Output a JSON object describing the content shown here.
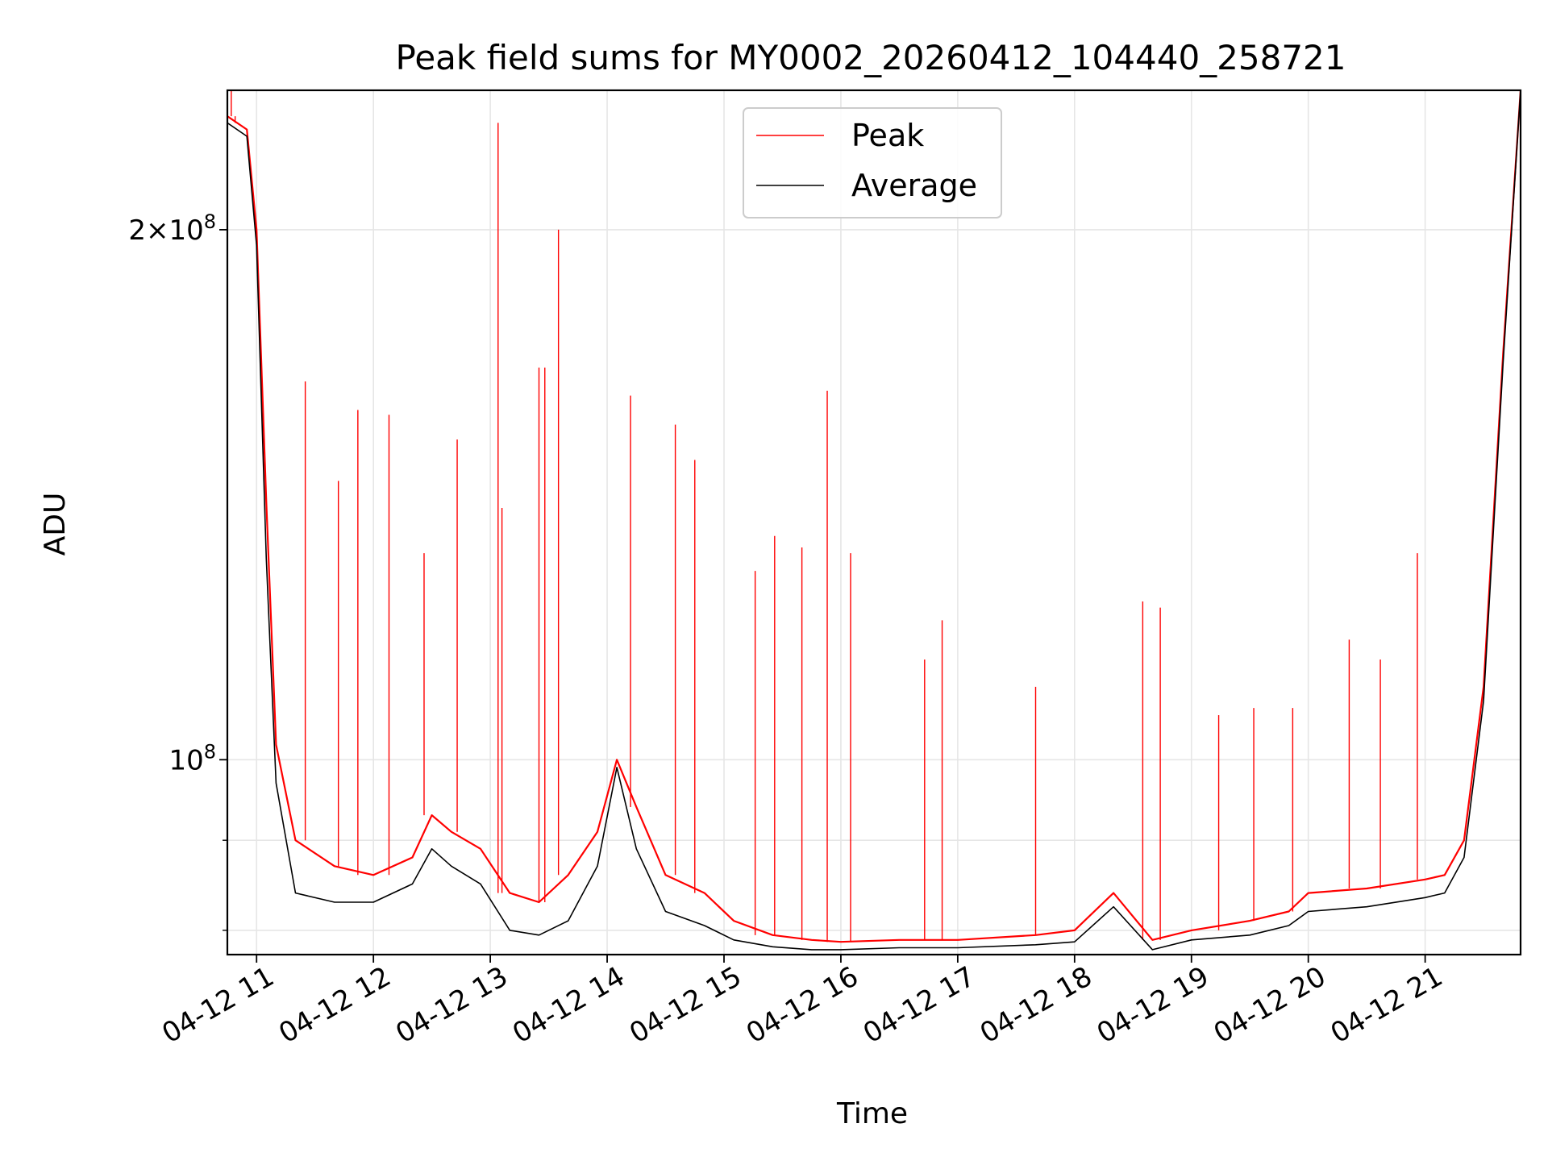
{
  "chart_data": {
    "type": "line",
    "title": "Peak field sums for MY0002_20260412_104440_258721",
    "xlabel": "Time",
    "ylabel": "ADU",
    "y_scale": "log",
    "ylim": [
      77500000,
      240000000
    ],
    "xlim": [
      "2026-04-12 10:45",
      "2026-04-12 21:49"
    ],
    "x_ticks": [
      "04-12 11",
      "04-12 12",
      "04-12 13",
      "04-12 14",
      "04-12 15",
      "04-12 16",
      "04-12 17",
      "04-12 18",
      "04-12 19",
      "04-12 20",
      "04-12 21"
    ],
    "x_tick_times": [
      "2026-04-12 11:00",
      "2026-04-12 12:00",
      "2026-04-12 13:00",
      "2026-04-12 14:00",
      "2026-04-12 15:00",
      "2026-04-12 16:00",
      "2026-04-12 17:00",
      "2026-04-12 18:00",
      "2026-04-12 19:00",
      "2026-04-12 20:00",
      "2026-04-12 21:00"
    ],
    "y_ticks_major": [
      {
        "value": 100000000,
        "base": "10",
        "exp": "8",
        "coef": ""
      },
      {
        "value": 200000000,
        "base": "10",
        "exp": "8",
        "coef": "2"
      }
    ],
    "y_ticks_minor": [
      80000000,
      90000000
    ],
    "grid": true,
    "legend_position": "top-center",
    "series": [
      {
        "name": "Peak",
        "color": "#ff0000",
        "x": [
          "2026-04-12 10:45",
          "2026-04-12 10:55",
          "2026-04-12 11:00",
          "2026-04-12 11:05",
          "2026-04-12 11:10",
          "2026-04-12 11:20",
          "2026-04-12 11:40",
          "2026-04-12 12:00",
          "2026-04-12 12:20",
          "2026-04-12 12:30",
          "2026-04-12 12:40",
          "2026-04-12 12:55",
          "2026-04-12 13:10",
          "2026-04-12 13:25",
          "2026-04-12 13:40",
          "2026-04-12 13:55",
          "2026-04-12 14:05",
          "2026-04-12 14:15",
          "2026-04-12 14:30",
          "2026-04-12 14:50",
          "2026-04-12 15:05",
          "2026-04-12 15:25",
          "2026-04-12 15:45",
          "2026-04-12 16:00",
          "2026-04-12 16:30",
          "2026-04-12 17:00",
          "2026-04-12 17:40",
          "2026-04-12 18:00",
          "2026-04-12 18:20",
          "2026-04-12 18:40",
          "2026-04-12 19:00",
          "2026-04-12 19:30",
          "2026-04-12 19:50",
          "2026-04-12 20:00",
          "2026-04-12 20:30",
          "2026-04-12 21:00",
          "2026-04-12 21:10",
          "2026-04-12 21:20",
          "2026-04-12 21:30",
          "2026-04-12 21:40",
          "2026-04-12 21:49"
        ],
        "y": [
          232000000,
          228000000,
          200000000,
          140000000,
          102000000,
          90000000,
          87000000,
          86000000,
          88000000,
          93000000,
          91000000,
          89000000,
          84000000,
          83000000,
          86000000,
          91000000,
          100000000,
          94000000,
          86000000,
          84000000,
          81000000,
          79500000,
          79000000,
          78800000,
          79000000,
          79000000,
          79500000,
          80000000,
          84000000,
          79000000,
          80000000,
          81000000,
          82000000,
          84000000,
          84500000,
          85500000,
          86000000,
          90000000,
          110000000,
          170000000,
          240000000
        ],
        "spikes": [
          {
            "x": "2026-04-12 10:47",
            "y": 240000000
          },
          {
            "x": "2026-04-12 10:49",
            "y": 230000000
          },
          {
            "x": "2026-04-12 11:25",
            "y": 164000000
          },
          {
            "x": "2026-04-12 11:42",
            "y": 144000000
          },
          {
            "x": "2026-04-12 11:52",
            "y": 158000000
          },
          {
            "x": "2026-04-12 12:08",
            "y": 157000000
          },
          {
            "x": "2026-04-12 12:26",
            "y": 131000000
          },
          {
            "x": "2026-04-12 12:43",
            "y": 152000000
          },
          {
            "x": "2026-04-12 13:04",
            "y": 230000000
          },
          {
            "x": "2026-04-12 13:06",
            "y": 139000000
          },
          {
            "x": "2026-04-12 13:25",
            "y": 167000000
          },
          {
            "x": "2026-04-12 13:28",
            "y": 167000000
          },
          {
            "x": "2026-04-12 13:35",
            "y": 200000000
          },
          {
            "x": "2026-04-12 14:12",
            "y": 161000000
          },
          {
            "x": "2026-04-12 14:35",
            "y": 155000000
          },
          {
            "x": "2026-04-12 14:45",
            "y": 148000000
          },
          {
            "x": "2026-04-12 15:16",
            "y": 128000000
          },
          {
            "x": "2026-04-12 15:26",
            "y": 134000000
          },
          {
            "x": "2026-04-12 15:40",
            "y": 132000000
          },
          {
            "x": "2026-04-12 15:53",
            "y": 162000000
          },
          {
            "x": "2026-04-12 16:05",
            "y": 131000000
          },
          {
            "x": "2026-04-12 16:43",
            "y": 114000000
          },
          {
            "x": "2026-04-12 16:52",
            "y": 120000000
          },
          {
            "x": "2026-04-12 17:40",
            "y": 110000000
          },
          {
            "x": "2026-04-12 18:35",
            "y": 123000000
          },
          {
            "x": "2026-04-12 18:44",
            "y": 122000000
          },
          {
            "x": "2026-04-12 19:14",
            "y": 106000000
          },
          {
            "x": "2026-04-12 19:32",
            "y": 107000000
          },
          {
            "x": "2026-04-12 19:52",
            "y": 107000000
          },
          {
            "x": "2026-04-12 20:21",
            "y": 117000000
          },
          {
            "x": "2026-04-12 20:37",
            "y": 114000000
          },
          {
            "x": "2026-04-12 20:56",
            "y": 131000000
          }
        ]
      },
      {
        "name": "Average",
        "color": "#000000",
        "x": [
          "2026-04-12 10:45",
          "2026-04-12 10:55",
          "2026-04-12 11:00",
          "2026-04-12 11:05",
          "2026-04-12 11:10",
          "2026-04-12 11:20",
          "2026-04-12 11:40",
          "2026-04-12 12:00",
          "2026-04-12 12:20",
          "2026-04-12 12:30",
          "2026-04-12 12:40",
          "2026-04-12 12:55",
          "2026-04-12 13:10",
          "2026-04-12 13:25",
          "2026-04-12 13:40",
          "2026-04-12 13:55",
          "2026-04-12 14:05",
          "2026-04-12 14:15",
          "2026-04-12 14:30",
          "2026-04-12 14:50",
          "2026-04-12 15:05",
          "2026-04-12 15:25",
          "2026-04-12 15:45",
          "2026-04-12 16:00",
          "2026-04-12 16:30",
          "2026-04-12 17:00",
          "2026-04-12 17:40",
          "2026-04-12 18:00",
          "2026-04-12 18:20",
          "2026-04-12 18:40",
          "2026-04-12 19:00",
          "2026-04-12 19:30",
          "2026-04-12 19:50",
          "2026-04-12 20:00",
          "2026-04-12 20:30",
          "2026-04-12 21:00",
          "2026-04-12 21:10",
          "2026-04-12 21:20",
          "2026-04-12 21:30",
          "2026-04-12 21:40",
          "2026-04-12 21:49"
        ],
        "y": [
          230000000,
          226000000,
          196000000,
          130000000,
          97000000,
          84000000,
          83000000,
          83000000,
          85000000,
          89000000,
          87000000,
          85000000,
          80000000,
          79500000,
          81000000,
          87000000,
          99000000,
          89000000,
          82000000,
          80500000,
          79000000,
          78300000,
          78000000,
          78000000,
          78200000,
          78200000,
          78500000,
          78800000,
          82500000,
          78000000,
          79000000,
          79500000,
          80500000,
          82000000,
          82500000,
          83500000,
          84000000,
          88000000,
          108000000,
          168000000,
          240000000
        ]
      }
    ]
  }
}
